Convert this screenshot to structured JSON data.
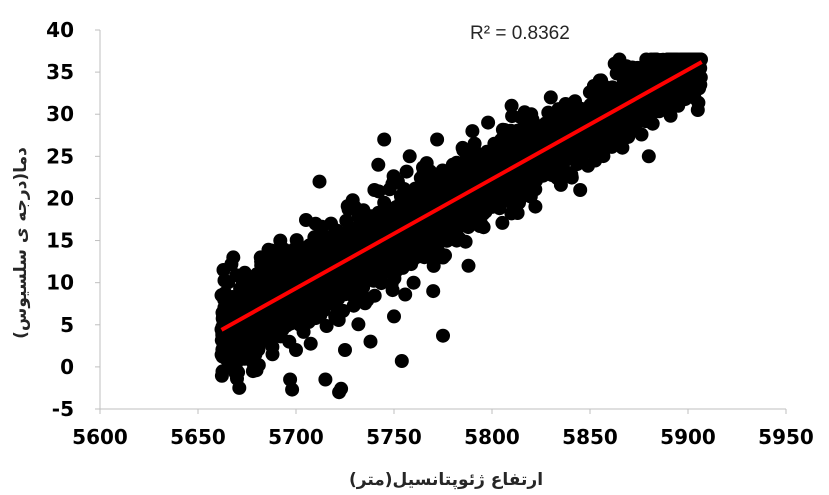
{
  "chart_data": {
    "type": "scatter",
    "title": "",
    "xlabel": "ارتفاع ژئوپتانسیل(متر)",
    "ylabel": "دما(درجه ی سلسیوس)",
    "xlim": [
      5600,
      5950
    ],
    "ylim": [
      -5,
      40
    ],
    "x_ticks": [
      "5600",
      "5650",
      "5700",
      "5750",
      "5800",
      "5850",
      "5900",
      "5950"
    ],
    "y_ticks": [
      "-5",
      "0",
      "5",
      "10",
      "15",
      "20",
      "25",
      "30",
      "35",
      "40"
    ],
    "annotation": "R² = 0.8362",
    "grid": false,
    "legend": "none",
    "colors": {
      "points": "#000000",
      "trendline": "#ff0000",
      "axis": "#bfbfbf"
    },
    "trendline": {
      "x": [
        5662,
        5907
      ],
      "y": [
        4.4,
        36.2
      ]
    },
    "series": [
      {
        "values": [
          [
            5662,
            8.5
          ],
          [
            5663,
            11.5
          ],
          [
            5668,
            13
          ],
          [
            5675,
            6
          ],
          [
            5676,
            8
          ],
          [
            5678,
            -0.5
          ],
          [
            5680,
            3
          ],
          [
            5682,
            13
          ],
          [
            5685,
            4
          ],
          [
            5688,
            1.5
          ],
          [
            5690,
            7
          ],
          [
            5692,
            15
          ],
          [
            5695,
            11
          ],
          [
            5697,
            -1.5
          ],
          [
            5698,
            -2.7
          ],
          [
            5700,
            2
          ],
          [
            5702,
            5
          ],
          [
            5705,
            14
          ],
          [
            5707,
            8
          ],
          [
            5710,
            17
          ],
          [
            5712,
            22
          ],
          [
            5715,
            -1.5
          ],
          [
            5718,
            11
          ],
          [
            5720,
            6
          ],
          [
            5722,
            -3
          ],
          [
            5723,
            -2.6
          ],
          [
            5725,
            2
          ],
          [
            5727,
            13
          ],
          [
            5730,
            19
          ],
          [
            5733,
            9
          ],
          [
            5735,
            15
          ],
          [
            5738,
            3
          ],
          [
            5740,
            21
          ],
          [
            5742,
            24
          ],
          [
            5744,
            11
          ],
          [
            5745,
            27
          ],
          [
            5748,
            18
          ],
          [
            5750,
            6
          ],
          [
            5752,
            22
          ],
          [
            5754,
            0.7
          ],
          [
            5755,
            14
          ],
          [
            5758,
            25
          ],
          [
            5760,
            10
          ],
          [
            5762,
            19
          ],
          [
            5765,
            16
          ],
          [
            5768,
            23
          ],
          [
            5770,
            9
          ],
          [
            5772,
            27
          ],
          [
            5775,
            3.7
          ],
          [
            5778,
            20
          ],
          [
            5780,
            24
          ],
          [
            5782,
            15
          ],
          [
            5785,
            26
          ],
          [
            5788,
            12
          ],
          [
            5790,
            28
          ],
          [
            5792,
            17
          ],
          [
            5795,
            23
          ],
          [
            5798,
            29
          ],
          [
            5800,
            19
          ],
          [
            5805,
            27
          ],
          [
            5810,
            31
          ],
          [
            5815,
            21
          ],
          [
            5820,
            30
          ],
          [
            5825,
            25
          ],
          [
            5830,
            32
          ],
          [
            5835,
            27
          ],
          [
            5840,
            31
          ],
          [
            5845,
            21
          ],
          [
            5850,
            29
          ],
          [
            5855,
            34
          ],
          [
            5860,
            32
          ],
          [
            5865,
            36.5
          ],
          [
            5870,
            28
          ],
          [
            5875,
            35
          ],
          [
            5880,
            25
          ],
          [
            5885,
            33
          ],
          [
            5890,
            36
          ],
          [
            5895,
            31
          ],
          [
            5900,
            35
          ],
          [
            5905,
            30.5
          ]
        ]
      }
    ]
  }
}
